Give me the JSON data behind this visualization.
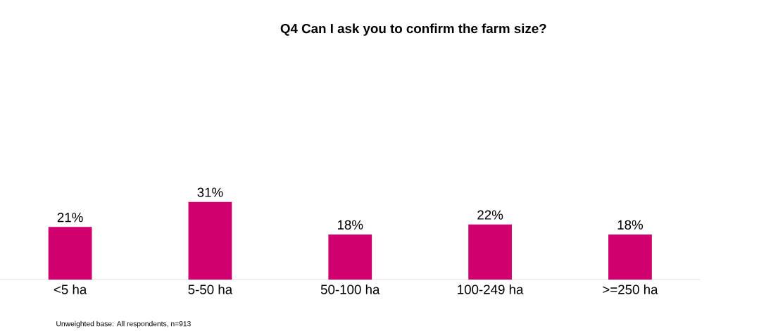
{
  "chart_data": {
    "type": "bar",
    "title": "Q4 Can I ask you to confirm the farm size?",
    "categories": [
      "<5 ha",
      "5-50 ha",
      "50-100 ha",
      "100-249 ha",
      ">=250 ha"
    ],
    "values": [
      21,
      31,
      18,
      22,
      18
    ],
    "value_labels": [
      "21%",
      "31%",
      "18%",
      "22%",
      "18%"
    ],
    "color": "#d0006f",
    "annotations": [
      "Unweighted base: All respondents, n=913"
    ]
  }
}
